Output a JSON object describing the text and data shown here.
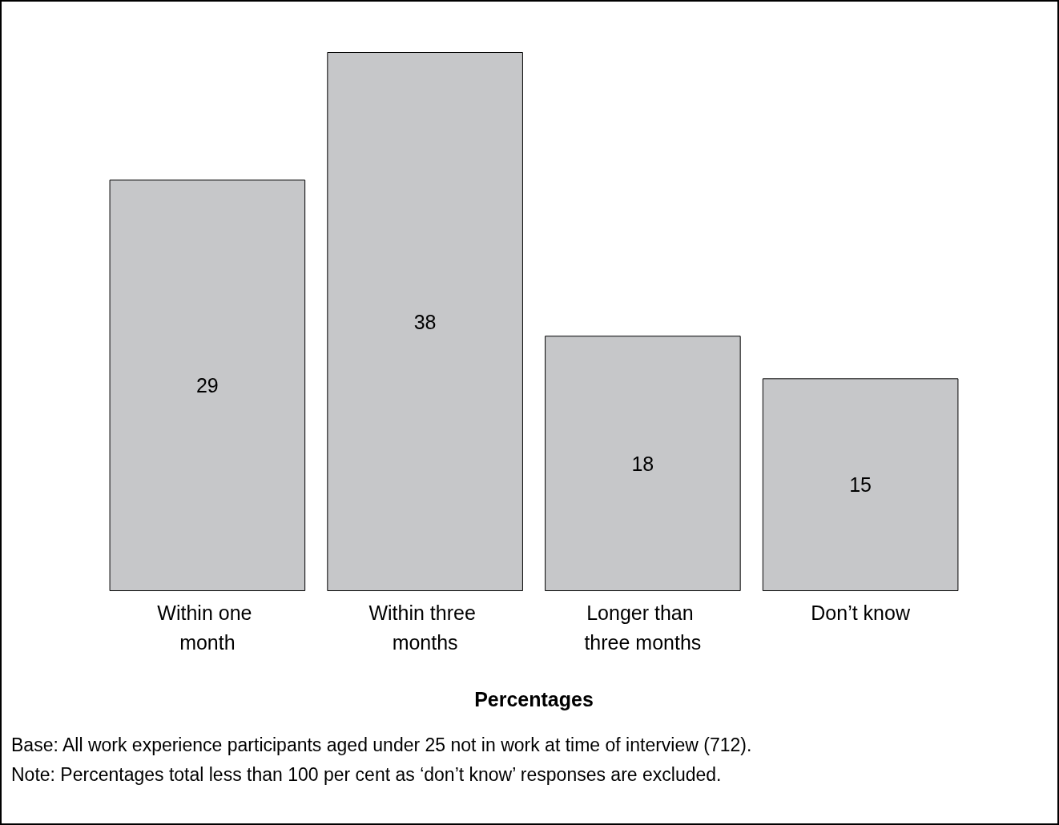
{
  "chart_data": {
    "type": "bar",
    "categories": [
      "Within one month",
      "Within three months",
      "Longer than three months",
      "Don’t know"
    ],
    "values": [
      29,
      38,
      18,
      15
    ],
    "color": "#c6c7c9",
    "xlabel": "Percentages",
    "data_labels": true,
    "tick_labels": "x",
    "annotations": [
      "Base: All work experience participants aged under 25 not in work at time of interview (712).",
      "Note: Percentages total less than 100 per cent as ‘don’t know’ responses are excluded."
    ]
  }
}
